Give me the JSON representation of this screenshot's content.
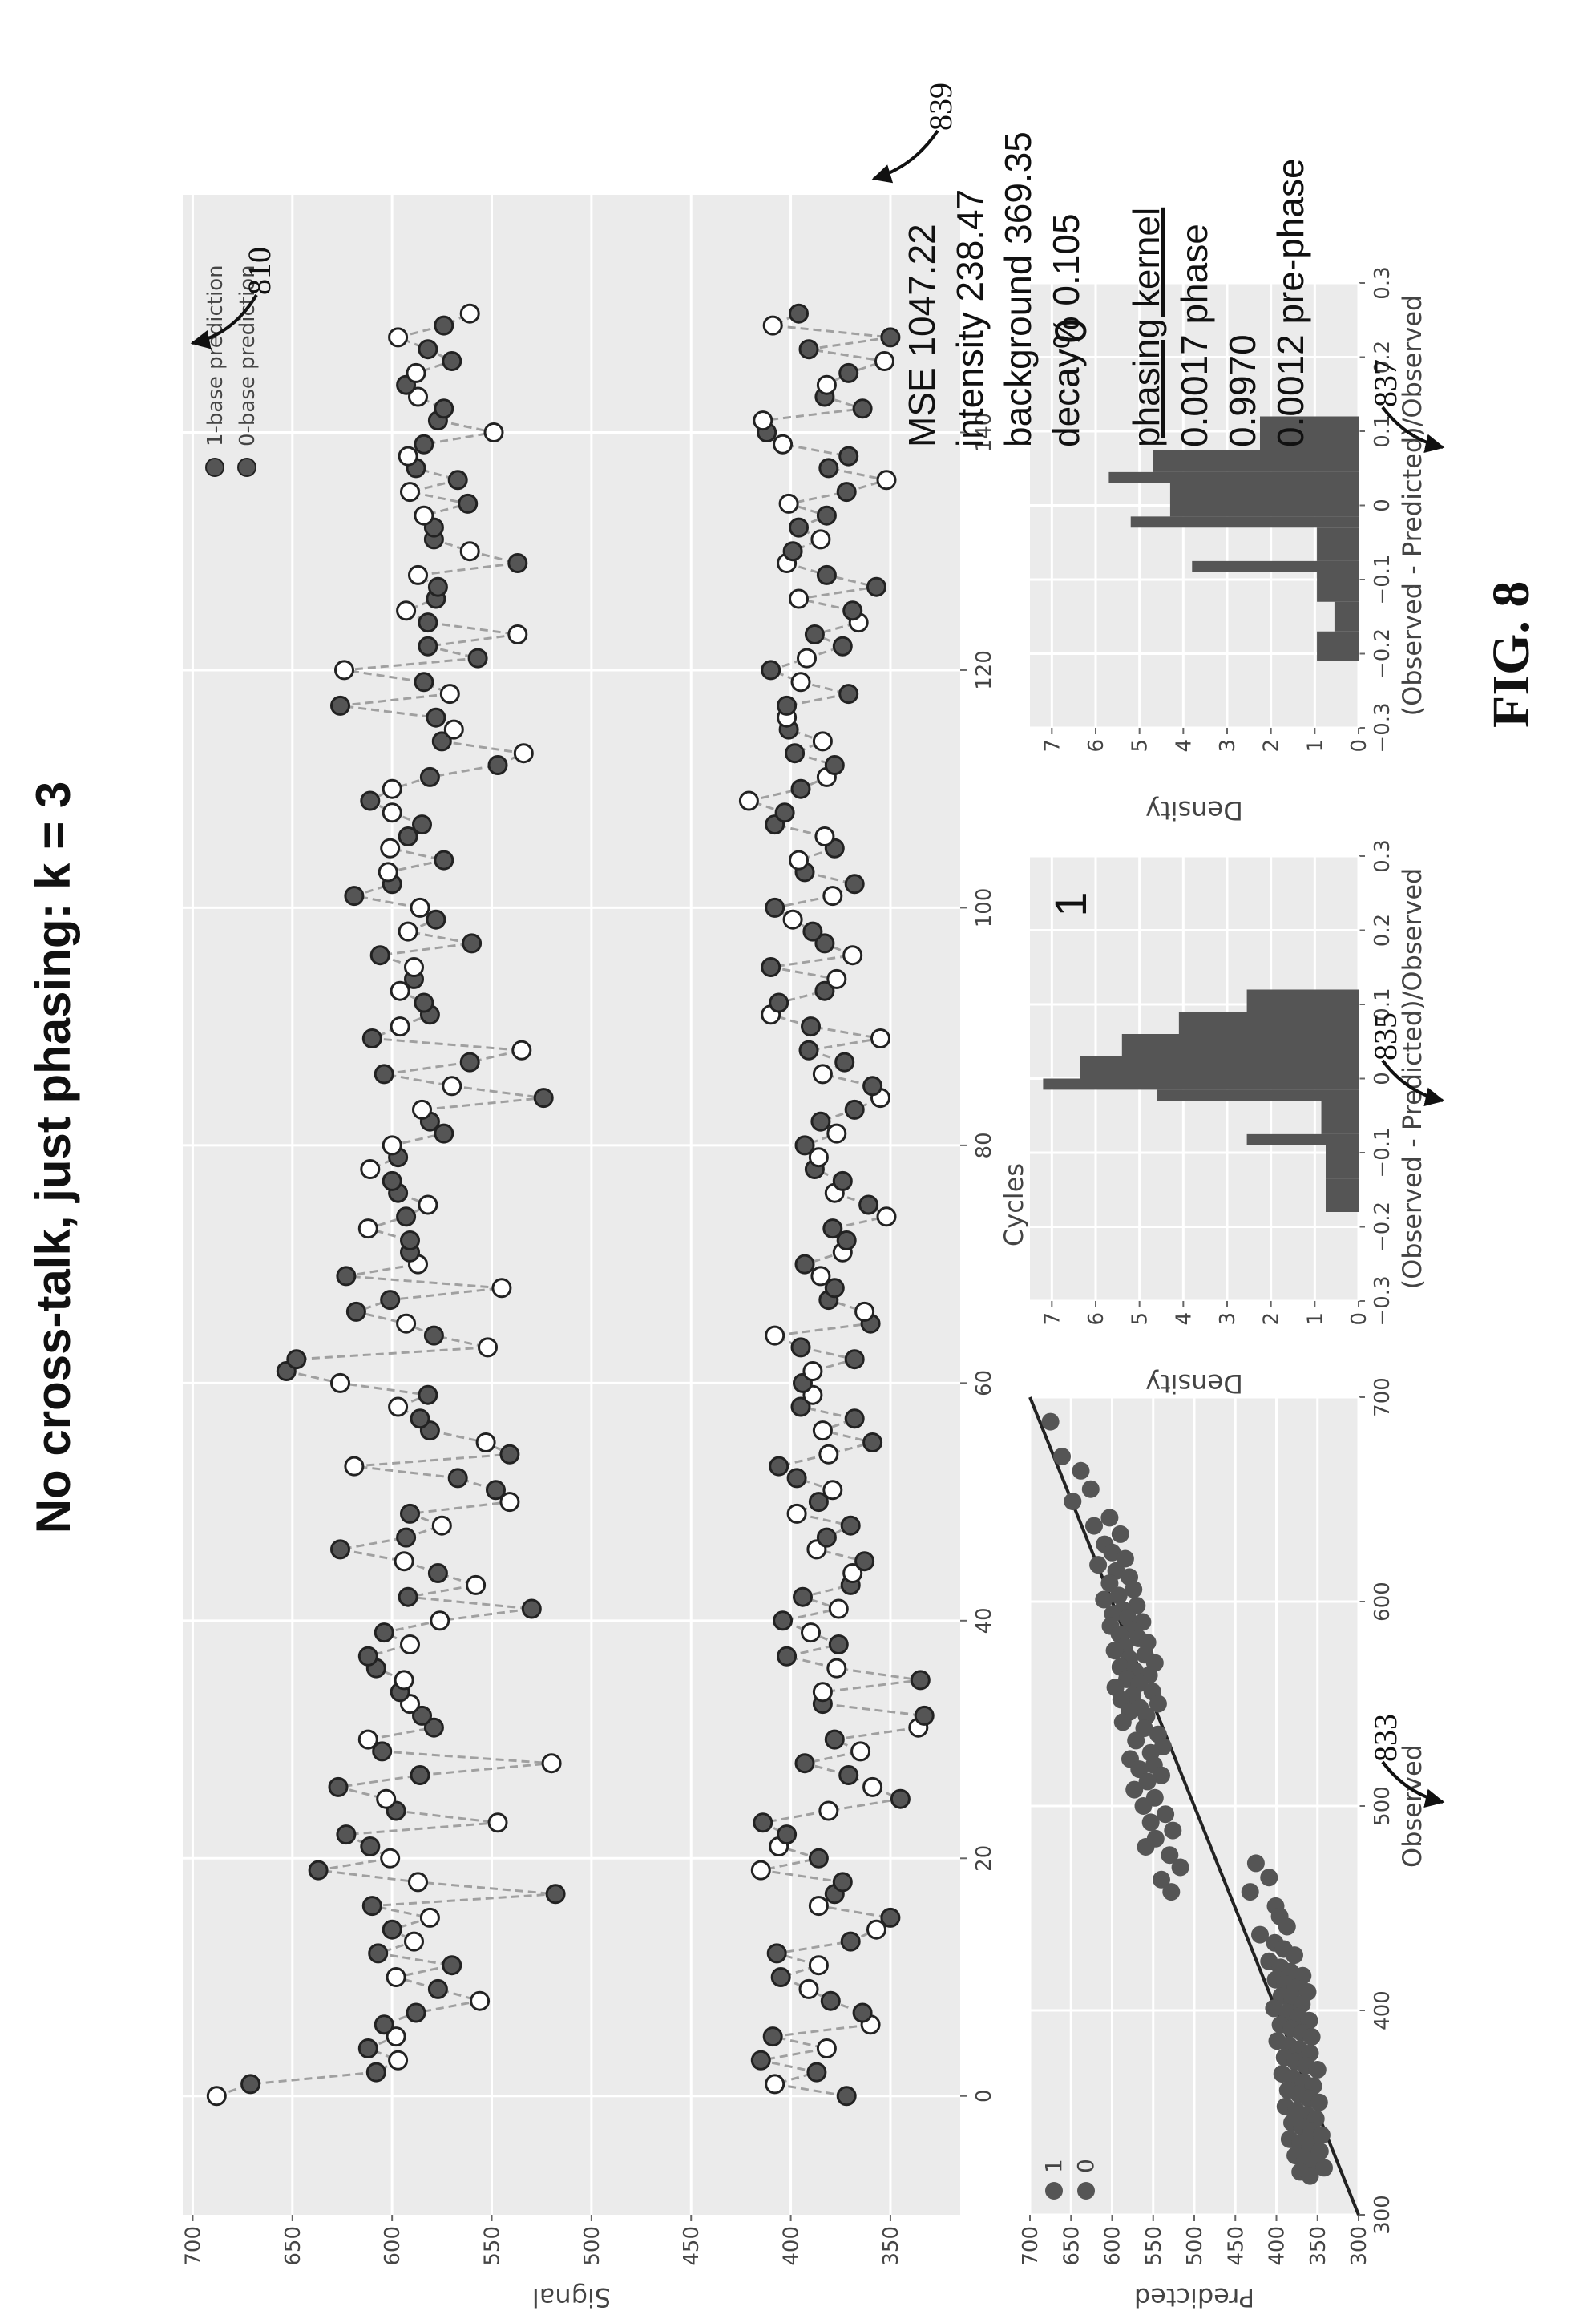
{
  "page_title": "No cross-talk, just phasing: k = 3",
  "figure_label": "FIG. 8",
  "reference_numerals": [
    "810",
    "833",
    "835",
    "837",
    "839"
  ],
  "stats": {
    "lines": [
      "MSE 1047.22",
      "intensity 238.47",
      "background 369.35",
      "decay% 0.105"
    ],
    "kernel_header": "phasing kernel",
    "kernel_lines": [
      "0.0017 phase",
      "0.9970",
      "0.0012 pre-phase"
    ]
  },
  "colors": {
    "panel_bg": "#ebebeb",
    "grid": "#ffffff",
    "marker": "#555555",
    "bar": "#555555",
    "line": "#a0a0a0"
  },
  "chart_data": [
    {
      "type": "scatter",
      "ref": "810",
      "xlabel": "Cycles",
      "ylabel": "Signal",
      "xlim": [
        -10,
        160
      ],
      "ylim": [
        315,
        705
      ],
      "xticks": [
        0,
        20,
        40,
        60,
        80,
        100,
        120,
        140
      ],
      "yticks": [
        350,
        400,
        450,
        500,
        550,
        600,
        650,
        700
      ],
      "legend_position": "top-right",
      "series": [
        {
          "name": "1-base prediction",
          "marker": "filled",
          "x": [
            0,
            1,
            2,
            3,
            4,
            5,
            6,
            7,
            8,
            9,
            10,
            11,
            12,
            13,
            14,
            15,
            16,
            17,
            18,
            19,
            20,
            21,
            22,
            23,
            24,
            25,
            26,
            27,
            28,
            29,
            30,
            31,
            32,
            33,
            34,
            35,
            36,
            37,
            38,
            39,
            40,
            41,
            42,
            43,
            44,
            45,
            46,
            47,
            48,
            49,
            50,
            51,
            52,
            53,
            54,
            55,
            56,
            57,
            58,
            59,
            60,
            61,
            62,
            63,
            64,
            65,
            66,
            67,
            68,
            69,
            70,
            71,
            72,
            73,
            74,
            75,
            76,
            77,
            78,
            79,
            80,
            81,
            82,
            83,
            84,
            85,
            86,
            87,
            88,
            89,
            90,
            91,
            92,
            93,
            94,
            95,
            96,
            97,
            98,
            99,
            100,
            101,
            102,
            103,
            104,
            105,
            106,
            107,
            108,
            109,
            110,
            111,
            112,
            113,
            114,
            115,
            116,
            117,
            118,
            119,
            120,
            121,
            122,
            123,
            124,
            125,
            126,
            127,
            128,
            129,
            130,
            131,
            132,
            133,
            134,
            135,
            136,
            137,
            138,
            139,
            140,
            141,
            142,
            143,
            144,
            145,
            146,
            147,
            148,
            149,
            150
          ],
          "y": [
            688,
            671,
            608,
            597,
            612,
            598,
            604,
            588,
            556,
            577,
            598,
            570,
            607,
            589,
            600,
            581,
            610,
            518,
            587,
            637,
            601,
            611,
            623,
            547,
            598,
            603,
            627,
            586,
            520,
            605,
            612,
            579,
            585,
            591,
            596,
            594,
            608,
            612,
            591,
            604,
            576,
            530,
            592,
            558,
            577,
            594,
            626,
            593,
            575,
            591,
            541,
            548,
            567,
            619,
            541,
            553,
            581,
            586,
            597,
            582,
            626,
            653,
            648,
            552,
            579,
            593,
            618,
            601,
            545,
            623,
            587,
            591,
            591,
            612,
            593,
            582,
            597,
            600,
            611,
            597,
            600,
            574,
            581,
            585,
            524,
            570,
            604,
            561,
            535,
            610,
            596,
            581,
            584,
            596,
            589,
            589,
            606,
            560,
            592,
            578,
            586,
            619,
            600,
            602,
            574,
            601,
            592,
            585,
            600,
            611,
            600,
            581,
            547,
            534,
            575,
            569,
            578,
            626,
            571,
            584,
            624,
            557,
            582,
            537,
            582,
            593,
            578,
            577,
            587,
            537,
            561,
            579,
            579,
            584,
            562,
            591,
            567,
            588,
            592,
            584,
            549,
            577,
            574,
            587,
            593,
            588,
            570,
            582,
            597,
            574,
            561
          ]
        },
        {
          "name": "0-base prediction",
          "marker": "open",
          "x": [
            0,
            1,
            2,
            3,
            4,
            5,
            6,
            7,
            8,
            9,
            10,
            11,
            12,
            13,
            14,
            15,
            16,
            17,
            18,
            19,
            20,
            21,
            22,
            23,
            24,
            25,
            26,
            27,
            28,
            29,
            30,
            31,
            32,
            33,
            34,
            35,
            36,
            37,
            38,
            39,
            40,
            41,
            42,
            43,
            44,
            45,
            46,
            47,
            48,
            49,
            50,
            51,
            52,
            53,
            54,
            55,
            56,
            57,
            58,
            59,
            60,
            61,
            62,
            63,
            64,
            65,
            66,
            67,
            68,
            69,
            70,
            71,
            72,
            73,
            74,
            75,
            76,
            77,
            78,
            79,
            80,
            81,
            82,
            83,
            84,
            85,
            86,
            87,
            88,
            89,
            90,
            91,
            92,
            93,
            94,
            95,
            96,
            97,
            98,
            99,
            100,
            101,
            102,
            103,
            104,
            105,
            106,
            107,
            108,
            109,
            110,
            111,
            112,
            113,
            114,
            115,
            116,
            117,
            118,
            119,
            120,
            121,
            122,
            123,
            124,
            125,
            126,
            127,
            128,
            129,
            130,
            131,
            132,
            133,
            134,
            135,
            136,
            137,
            138,
            139,
            140,
            141,
            142,
            143,
            144,
            145,
            146,
            147,
            148,
            149,
            150
          ],
          "y": [
            372,
            408,
            387,
            415,
            382,
            409,
            360,
            364,
            380,
            391,
            405,
            386,
            407,
            370,
            357,
            350,
            386,
            378,
            374,
            415,
            386,
            406,
            402,
            414,
            381,
            345,
            359,
            371,
            393,
            365,
            378,
            336,
            333,
            384,
            384,
            335,
            377,
            402,
            376,
            390,
            404,
            376,
            394,
            370,
            369,
            363,
            387,
            382,
            370,
            397,
            386,
            379,
            397,
            406,
            381,
            359,
            384,
            368,
            395,
            389,
            394,
            389,
            368,
            395,
            408,
            360,
            363,
            381,
            378,
            385,
            393,
            374,
            372,
            379,
            352,
            361,
            378,
            374,
            388,
            386,
            393,
            377,
            385,
            368,
            355,
            359,
            384,
            373,
            391,
            355,
            390,
            410,
            406,
            383,
            377,
            410,
            369,
            383,
            389,
            399,
            408,
            379,
            368,
            393,
            396,
            378,
            383,
            408,
            403,
            421,
            395,
            382,
            378,
            398,
            384,
            401,
            402,
            402,
            371,
            395,
            410,
            392,
            374,
            388,
            366,
            369,
            396,
            357,
            382,
            402,
            399,
            385,
            396,
            382,
            401,
            372,
            352,
            381,
            371,
            404,
            412,
            414,
            364,
            383,
            382,
            371,
            353,
            391,
            350,
            409,
            396
          ]
        }
      ]
    },
    {
      "type": "scatter",
      "ref": "833",
      "xlabel": "Observed",
      "ylabel": "Predicted",
      "xlim": [
        300,
        700
      ],
      "ylim": [
        300,
        700
      ],
      "xticks": [
        300,
        400,
        500,
        600,
        700
      ],
      "yticks": [
        300,
        350,
        400,
        450,
        500,
        550,
        600,
        650,
        700
      ],
      "legend_position": "top-left",
      "series": [
        {
          "name": "1",
          "marker": "filled",
          "x": [
            688,
            671,
            664,
            655,
            649,
            641,
            637,
            633,
            628,
            624,
            621,
            618,
            615,
            612,
            609,
            606,
            603,
            601,
            598,
            596,
            594,
            592,
            590,
            588,
            586,
            584,
            582,
            580,
            578,
            576,
            574,
            572,
            570,
            568,
            566,
            564,
            562,
            560,
            558,
            556,
            554,
            552,
            550,
            548,
            546,
            544,
            541,
            538,
            535,
            532,
            529,
            526,
            523,
            520,
            518,
            515,
            512,
            508,
            504,
            500,
            496,
            492,
            488,
            484,
            480,
            476,
            470,
            464,
            458
          ],
          "y": [
            675,
            661,
            638,
            626,
            648,
            603,
            622,
            590,
            609,
            600,
            584,
            617,
            595,
            579,
            603,
            574,
            592,
            610,
            570,
            587,
            599,
            581,
            563,
            602,
            576,
            591,
            568,
            557,
            585,
            597,
            560,
            579,
            548,
            590,
            572,
            555,
            582,
            567,
            596,
            551,
            575,
            589,
            544,
            566,
            579,
            558,
            587,
            561,
            544,
            571,
            538,
            553,
            578,
            549,
            567,
            540,
            557,
            573,
            548,
            562,
            535,
            553,
            526,
            547,
            559,
            530,
            517,
            540,
            528
          ]
        },
        {
          "name": "0",
          "marker": "filled",
          "x": [
            472,
            465,
            458,
            451,
            446,
            441,
            437,
            433,
            430,
            427,
            424,
            421,
            419,
            417,
            415,
            413,
            411,
            409,
            407,
            405,
            403,
            401,
            399,
            397,
            395,
            393,
            391,
            389,
            387,
            385,
            383,
            381,
            379,
            377,
            375,
            373,
            371,
            369,
            367,
            365,
            363,
            361,
            359,
            357,
            355,
            353,
            351,
            349,
            347,
            345,
            343,
            341,
            339,
            337,
            335,
            333,
            331,
            329,
            327,
            325,
            323,
            321,
            319
          ],
          "y": [
            425,
            409,
            432,
            401,
            396,
            387,
            420,
            402,
            391,
            378,
            409,
            395,
            383,
            368,
            401,
            389,
            377,
            362,
            394,
            381,
            369,
            403,
            387,
            374,
            360,
            395,
            382,
            369,
            357,
            399,
            385,
            372,
            359,
            390,
            377,
            364,
            350,
            393,
            380,
            367,
            355,
            386,
            373,
            361,
            348,
            389,
            376,
            363,
            352,
            381,
            369,
            357,
            345,
            384,
            371,
            359,
            347,
            377,
            365,
            353,
            342,
            371,
            359
          ]
        }
      ]
    },
    {
      "type": "bar",
      "ref": "835",
      "corner_label": "1",
      "xlabel": "(Observed - Predicted)/Observed",
      "ylabel": "Density",
      "xlim": [
        -0.3,
        0.3
      ],
      "ylim": [
        0,
        7.5
      ],
      "xticks": [
        -0.3,
        -0.2,
        -0.1,
        0.0,
        0.1,
        0.2,
        0.3
      ],
      "yticks": [
        0,
        1,
        2,
        3,
        4,
        5,
        6,
        7
      ],
      "bins": [
        [
          -0.18,
          -0.135,
          0.75
        ],
        [
          -0.135,
          -0.09,
          0.75
        ],
        [
          -0.09,
          -0.075,
          2.55
        ],
        [
          -0.075,
          -0.03,
          0.85
        ],
        [
          -0.03,
          -0.015,
          4.6
        ],
        [
          -0.015,
          0.0,
          7.2
        ],
        [
          0.0,
          0.03,
          6.35
        ],
        [
          0.03,
          0.06,
          5.4
        ],
        [
          0.06,
          0.09,
          4.1
        ],
        [
          0.09,
          0.12,
          2.55
        ]
      ]
    },
    {
      "type": "bar",
      "ref": "837",
      "corner_label": "0",
      "xlabel": "(Observed - Predicted)/Observed",
      "ylabel": "Density",
      "xlim": [
        -0.3,
        0.3
      ],
      "ylim": [
        0,
        7.5
      ],
      "xticks": [
        -0.3,
        -0.2,
        -0.1,
        0.0,
        0.1,
        0.2,
        0.3
      ],
      "yticks": [
        0,
        1,
        2,
        3,
        4,
        5,
        6,
        7
      ],
      "bins": [
        [
          -0.21,
          -0.17,
          0.95
        ],
        [
          -0.17,
          -0.13,
          0.55
        ],
        [
          -0.13,
          -0.09,
          0.95
        ],
        [
          -0.09,
          -0.075,
          3.8
        ],
        [
          -0.075,
          -0.03,
          0.95
        ],
        [
          -0.03,
          -0.015,
          5.2
        ],
        [
          -0.015,
          0.03,
          4.3
        ],
        [
          0.03,
          0.045,
          5.7
        ],
        [
          0.045,
          0.075,
          4.7
        ],
        [
          0.075,
          0.12,
          2.25
        ]
      ]
    }
  ]
}
